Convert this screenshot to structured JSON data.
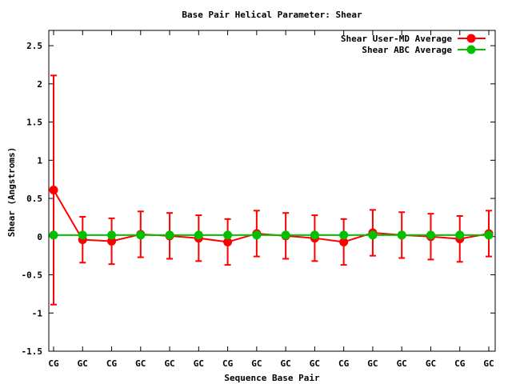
{
  "chart_data": {
    "type": "line",
    "title": "Base Pair Helical Parameter: Shear",
    "xlabel": "Sequence Base Pair",
    "ylabel": "Shear (Angstroms)",
    "categories": [
      "CG",
      "GC",
      "CG",
      "GC",
      "GC",
      "GC",
      "CG",
      "GC",
      "GC",
      "GC",
      "CG",
      "GC",
      "GC",
      "GC",
      "CG",
      "GC"
    ],
    "ylim": [
      -1.5,
      2.7
    ],
    "yticks": [
      -1.5,
      -1,
      -0.5,
      0,
      0.5,
      1,
      1.5,
      2,
      2.5
    ],
    "ytick_labels": [
      "-1.5",
      "-1",
      "-0.5",
      "0",
      "0.5",
      "1",
      "1.5",
      "2",
      "2.5"
    ],
    "grid": false,
    "legend_position": "top-right",
    "series": [
      {
        "name": "Shear User-MD Average",
        "color": "#ff0000",
        "values": [
          0.61,
          -0.04,
          -0.06,
          0.03,
          0.01,
          -0.02,
          -0.07,
          0.04,
          0.01,
          -0.02,
          -0.07,
          0.05,
          0.02,
          0.0,
          -0.03,
          0.04
        ],
        "error": [
          1.5,
          0.3,
          0.3,
          0.3,
          0.3,
          0.3,
          0.3,
          0.3,
          0.3,
          0.3,
          0.3,
          0.3,
          0.3,
          0.3,
          0.3,
          0.3
        ]
      },
      {
        "name": "Shear ABC Average",
        "color": "#00c000",
        "values": [
          0.02,
          0.02,
          0.02,
          0.02,
          0.02,
          0.02,
          0.02,
          0.02,
          0.02,
          0.02,
          0.02,
          0.02,
          0.02,
          0.02,
          0.02,
          0.02
        ]
      }
    ]
  }
}
